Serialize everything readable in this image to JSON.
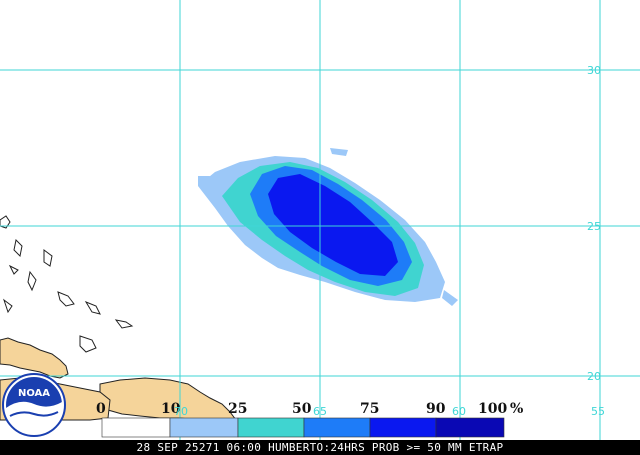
{
  "map": {
    "product": "HUMBERTO",
    "latitudes": [
      "30",
      "25",
      "20"
    ],
    "longitudes": [
      "70",
      "65",
      "60",
      "55"
    ]
  },
  "legend": {
    "thresholds": [
      "0",
      "10",
      "25",
      "50",
      "75",
      "90",
      "100"
    ],
    "unit": "%",
    "colors": [
      "#ffffff",
      "#9cc8f8",
      "#40d4d0",
      "#1e7cf8",
      "#0a18f0",
      "#0a08b4"
    ]
  },
  "probability_levels": [
    10,
    25,
    50,
    75,
    90
  ],
  "colors": {
    "grid": "#3fd6d6",
    "land": "#f5d49a",
    "caption_bg": "#000000",
    "caption_text": "#ffffff"
  },
  "logo": {
    "text": "NOAA",
    "icon": "noaa-logo-icon"
  },
  "caption": {
    "text": "28 SEP 25271 06:00 HUMBERTO:24HRS PROB >= 50 MM ETRAP"
  }
}
